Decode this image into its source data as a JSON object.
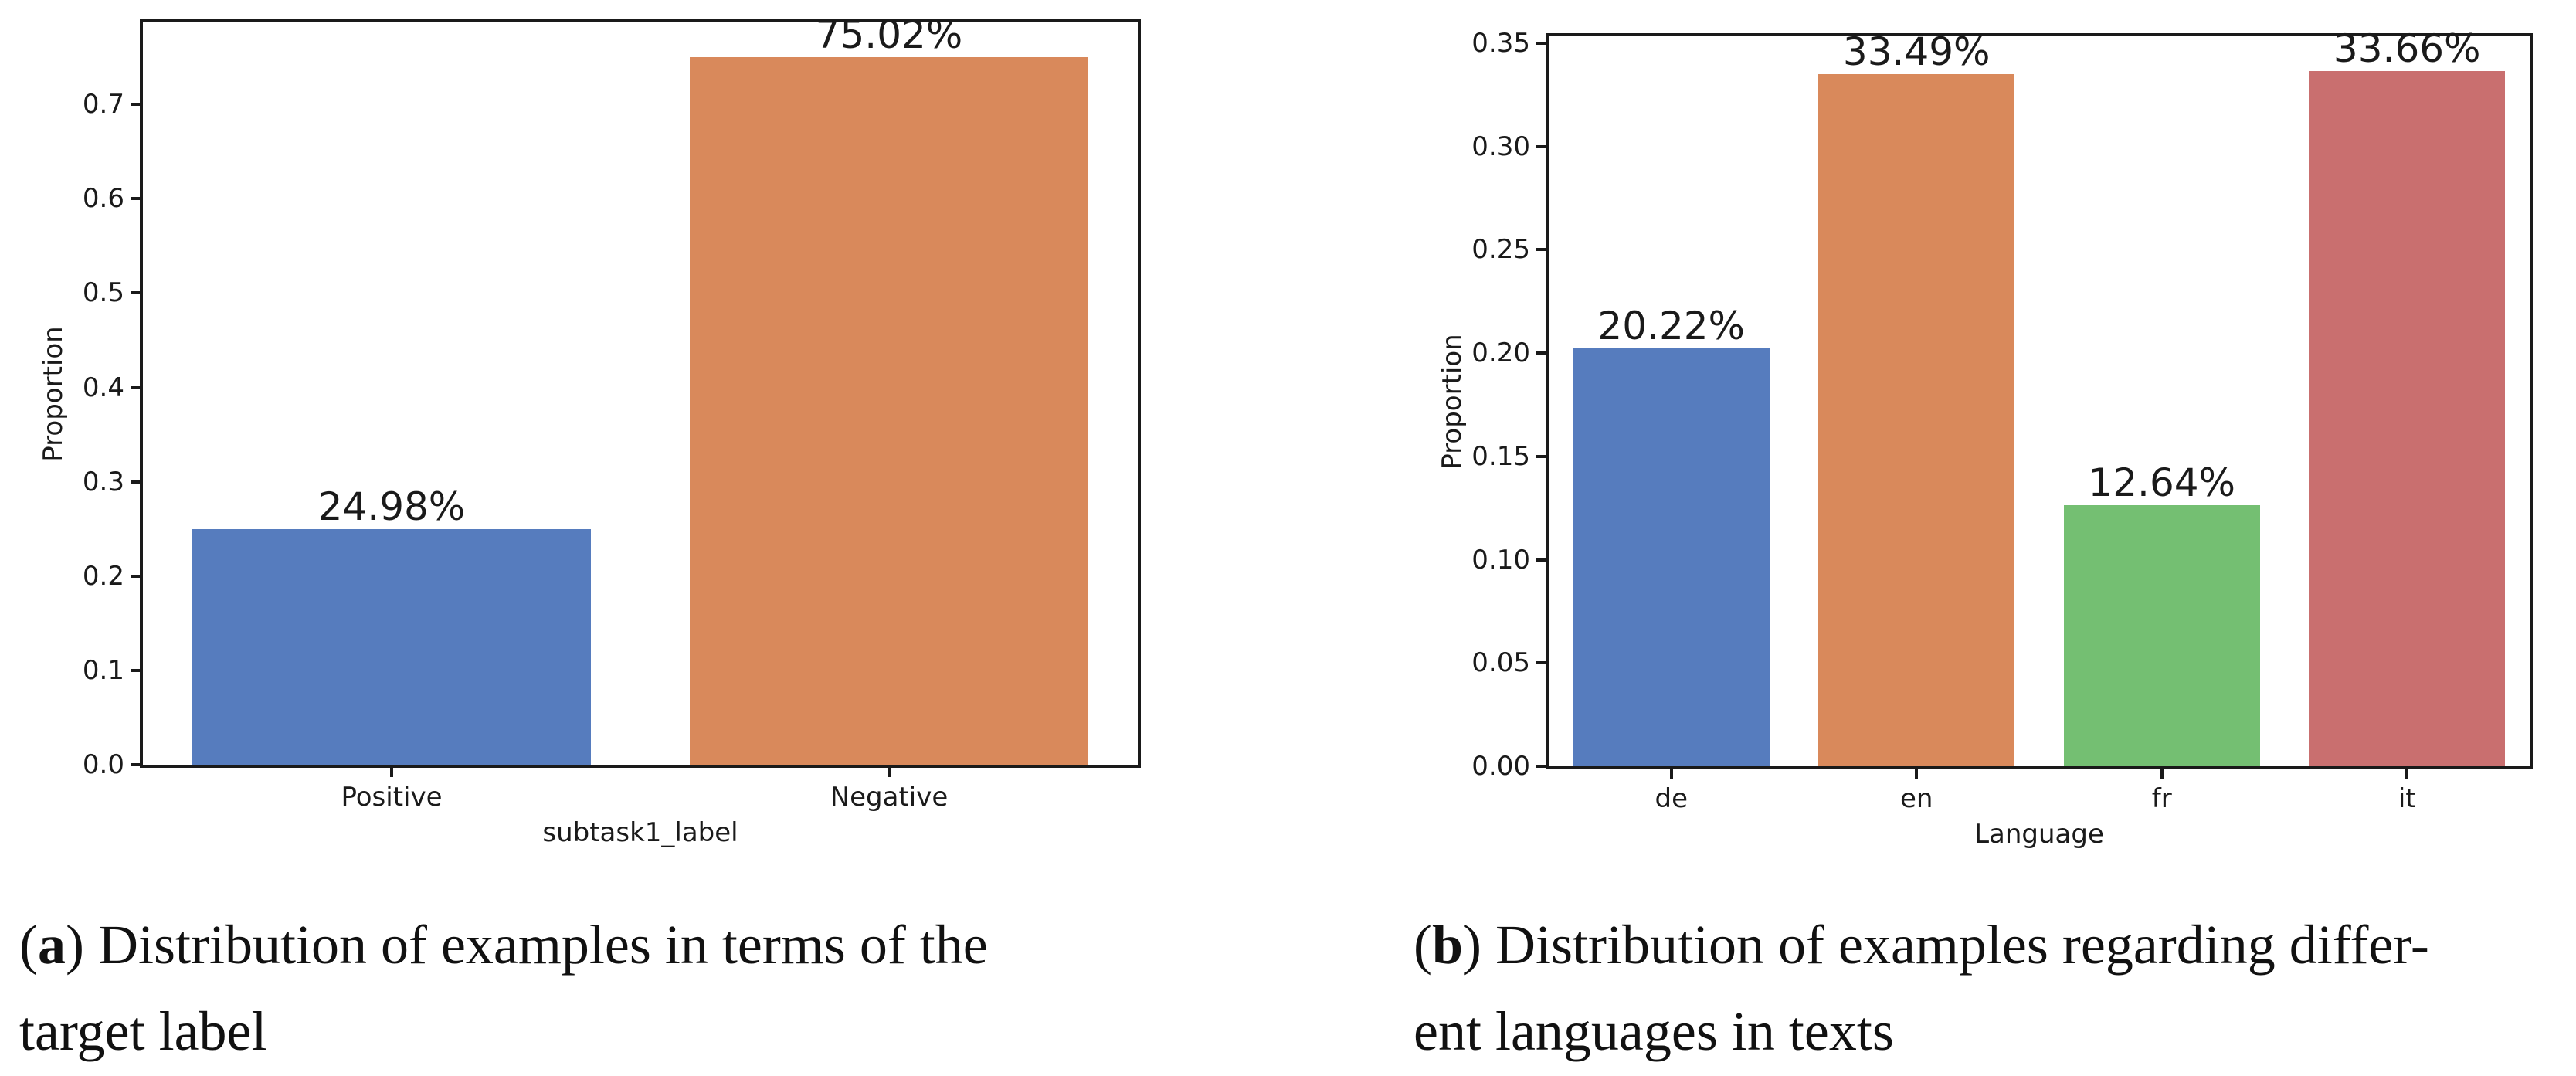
{
  "figure_type": "two-panel bar chart figure from a paper",
  "captions": {
    "a": {
      "label": "a",
      "line1": "Distribution of examples in terms of the",
      "line2": "target label"
    },
    "b": {
      "label": "b",
      "line1": "Distribution of examples regarding differ-",
      "line2": "ent languages in texts"
    }
  },
  "chart_data": [
    {
      "id": "a",
      "type": "bar",
      "title": "",
      "xlabel": "subtask1_label",
      "ylabel": "Proportion",
      "categories": [
        "Positive",
        "Negative"
      ],
      "values": [
        0.2498,
        0.7502
      ],
      "bar_labels": [
        "24.98%",
        "75.02%"
      ],
      "bar_colors": [
        "#567CBE",
        "#D9895B"
      ],
      "ylim": [
        0,
        0.787
      ],
      "yticks": [
        0.0,
        0.1,
        0.2,
        0.3,
        0.4,
        0.5,
        0.6,
        0.7
      ],
      "ytick_labels": [
        "0.0",
        "0.1",
        "0.2",
        "0.3",
        "0.4",
        "0.5",
        "0.6",
        "0.7"
      ],
      "bar_width_fraction": 0.8,
      "grid": false,
      "legend": null
    },
    {
      "id": "b",
      "type": "bar",
      "title": "",
      "xlabel": "Language",
      "ylabel": "Proportion",
      "categories": [
        "de",
        "en",
        "fr",
        "it"
      ],
      "values": [
        0.2022,
        0.3349,
        0.1264,
        0.3366
      ],
      "bar_labels": [
        "20.22%",
        "33.49%",
        "12.64%",
        "33.66%"
      ],
      "bar_colors": [
        "#567CBE",
        "#D9895B",
        "#74BF72",
        "#C96F6F"
      ],
      "ylim": [
        0,
        0.3534
      ],
      "yticks": [
        0.0,
        0.05,
        0.1,
        0.15,
        0.2,
        0.25,
        0.3,
        0.35
      ],
      "ytick_labels": [
        "0.00",
        "0.05",
        "0.10",
        "0.15",
        "0.20",
        "0.25",
        "0.30",
        "0.35"
      ],
      "bar_width_fraction": 0.8,
      "grid": false,
      "legend": null
    }
  ]
}
